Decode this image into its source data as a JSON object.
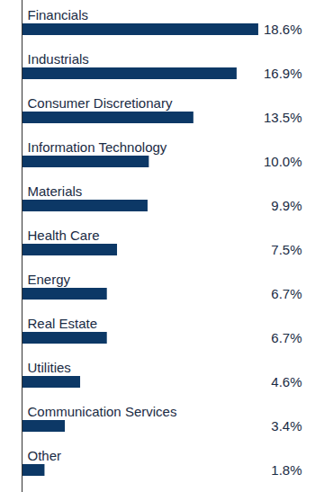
{
  "chart_data": {
    "type": "bar",
    "orientation": "horizontal",
    "categories": [
      "Financials",
      "Industrials",
      "Consumer Discretionary",
      "Information Technology",
      "Materials",
      "Health Care",
      "Energy",
      "Real Estate",
      "Utilities",
      "Communication Services",
      "Other"
    ],
    "values": [
      18.6,
      16.9,
      13.5,
      10.0,
      9.9,
      7.5,
      6.7,
      6.7,
      4.6,
      3.4,
      1.8
    ],
    "value_labels": [
      "18.6%",
      "16.9%",
      "13.5%",
      "10.0%",
      "9.9%",
      "7.5%",
      "6.7%",
      "6.7%",
      "4.6%",
      "3.4%",
      "1.8%"
    ],
    "data_labels": true,
    "color": "#0c3866",
    "xlim": [
      0,
      22
    ],
    "tick_labels": false,
    "grid": false
  }
}
